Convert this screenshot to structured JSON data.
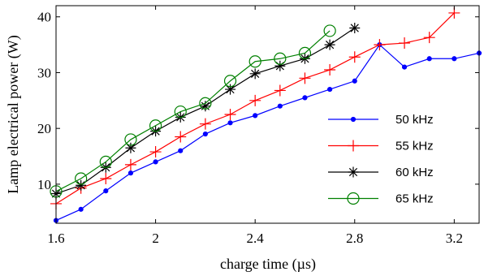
{
  "chart_data": {
    "type": "line",
    "xlabel": "charge time (µs)",
    "ylabel": "Lamp electrical power (W)",
    "xlim": [
      1.6,
      3.3
    ],
    "ylim": [
      3,
      42
    ],
    "xticks": [
      1.6,
      2.0,
      2.4,
      2.8,
      3.2
    ],
    "xtick_labels": [
      "1.6",
      "2",
      "2.4",
      "2.8",
      "3.2"
    ],
    "yticks": [
      10,
      20,
      30,
      40
    ],
    "ytick_labels": [
      "10",
      "20",
      "30",
      "40"
    ],
    "grid": false,
    "legend_position": "lower-right",
    "series": [
      {
        "name": "50 kHz",
        "color": "#0000ff",
        "marker": "dot",
        "x": [
          1.6,
          1.7,
          1.8,
          1.9,
          2.0,
          2.1,
          2.2,
          2.3,
          2.4,
          2.5,
          2.6,
          2.7,
          2.8,
          2.9,
          3.0,
          3.1,
          3.2,
          3.3
        ],
        "y": [
          3.5,
          5.5,
          8.8,
          12.0,
          14.0,
          16.0,
          19.0,
          21.0,
          22.3,
          24.0,
          25.5,
          27.0,
          28.5,
          35.0,
          31.0,
          32.5,
          32.5,
          33.5
        ]
      },
      {
        "name": "55 kHz",
        "color": "#ff0000",
        "marker": "plus",
        "x": [
          1.6,
          1.7,
          1.8,
          1.9,
          2.0,
          2.1,
          2.2,
          2.3,
          2.4,
          2.5,
          2.6,
          2.7,
          2.8,
          2.9,
          3.0,
          3.1,
          3.2
        ],
        "y": [
          6.5,
          9.3,
          11.0,
          13.5,
          15.8,
          18.5,
          20.8,
          22.5,
          25.0,
          26.8,
          29.0,
          30.5,
          32.8,
          35.0,
          35.3,
          36.3,
          40.7
        ]
      },
      {
        "name": "60 kHz",
        "color": "#000000",
        "marker": "asterisk",
        "x": [
          1.6,
          1.7,
          1.8,
          1.9,
          2.0,
          2.1,
          2.2,
          2.3,
          2.4,
          2.5,
          2.6,
          2.7,
          2.8
        ],
        "y": [
          8.3,
          9.8,
          13.0,
          16.5,
          19.5,
          22.0,
          24.0,
          27.0,
          29.8,
          31.2,
          32.5,
          35.0,
          38.0
        ]
      },
      {
        "name": "65 kHz",
        "color": "#008000",
        "marker": "circle",
        "x": [
          1.6,
          1.7,
          1.8,
          1.9,
          2.0,
          2.1,
          2.2,
          2.3,
          2.4,
          2.5,
          2.6,
          2.7
        ],
        "y": [
          8.7,
          11.0,
          14.0,
          18.0,
          20.5,
          23.0,
          24.5,
          28.5,
          32.0,
          32.5,
          33.5,
          37.5
        ]
      }
    ]
  }
}
